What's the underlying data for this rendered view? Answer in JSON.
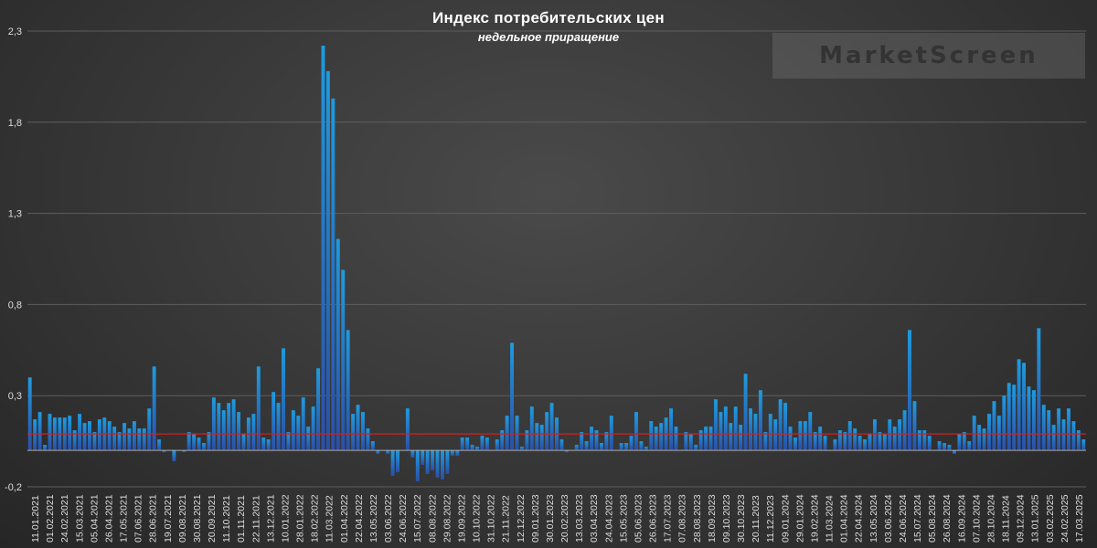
{
  "chart_data": {
    "type": "bar",
    "title": "Индекс потребительских цен",
    "subtitle": "недельное приращение",
    "ylim": [
      -0.2,
      2.3
    ],
    "yticks": [
      -0.2,
      0.3,
      0.8,
      1.3,
      1.8,
      2.3
    ],
    "ytick_labels": [
      "-0,2",
      "0,3",
      "0,8",
      "1,3",
      "1,8",
      "2,3"
    ],
    "xtick_labels": [
      "11.01.2021",
      "01.02.2021",
      "24.02.2021",
      "15.03.2021",
      "05.04.2021",
      "26.04.2021",
      "17.05.2021",
      "07.06.2021",
      "28.06.2021",
      "19.07.2021",
      "09.08.2021",
      "30.08.2021",
      "20.09.2021",
      "11.10.2021",
      "01.11.2021",
      "22.11.2021",
      "13.12.2021",
      "10.01.2022",
      "28.01.2022",
      "18.02.2022",
      "11.03.2022",
      "01.04.2022",
      "22.04.2022",
      "13.05.2022",
      "03.06.2022",
      "24.06.2022",
      "15.07.2022",
      "08.08.2022",
      "29.08.2022",
      "19.09.2022",
      "10.10.2022",
      "31.10.2022",
      "21.11.2022",
      "12.12.2022",
      "09.01.2023",
      "30.01.2023",
      "20.02.2023",
      "13.03.2023",
      "03.04.2023",
      "24.04.2023",
      "15.05.2023",
      "05.06.2023",
      "26.06.2023",
      "17.07.2023",
      "07.08.2023",
      "28.08.2023",
      "18.09.2023",
      "09.10.2023",
      "30.10.2023",
      "20.11.2023",
      "11.12.2023",
      "09.01.2024",
      "29.01.2024",
      "19.02.2024",
      "11.03.2024",
      "01.04.2024",
      "22.04.2024",
      "13.05.2024",
      "03.06.2024",
      "24.06.2024",
      "15.07.2024",
      "05.08.2024",
      "26.08.2024",
      "16.09.2024",
      "07.10.2024",
      "28.10.2024",
      "18.11.2024",
      "09.12.2024",
      "13.01.2025",
      "03.02.2025",
      "24.02.2025",
      "17.03.2025"
    ],
    "values": [
      0.4,
      0.17,
      0.21,
      0.03,
      0.2,
      0.18,
      0.18,
      0.18,
      0.19,
      0.11,
      0.2,
      0.15,
      0.16,
      0.1,
      0.17,
      0.18,
      0.16,
      0.13,
      0.1,
      0.15,
      0.12,
      0.16,
      0.12,
      0.12,
      0.23,
      0.46,
      0.06,
      -0.01,
      0.0,
      -0.06,
      0.0,
      -0.01,
      0.1,
      0.09,
      0.07,
      0.04,
      0.1,
      0.29,
      0.26,
      0.22,
      0.26,
      0.28,
      0.21,
      0.09,
      0.18,
      0.2,
      0.46,
      0.07,
      0.06,
      0.32,
      0.26,
      0.56,
      0.1,
      0.22,
      0.19,
      0.29,
      0.13,
      0.24,
      0.45,
      2.22,
      2.08,
      1.93,
      1.16,
      0.99,
      0.66,
      0.2,
      0.25,
      0.21,
      0.12,
      0.05,
      -0.02,
      0.0,
      -0.02,
      -0.14,
      -0.12,
      0.0,
      0.23,
      -0.04,
      -0.17,
      -0.08,
      -0.13,
      -0.11,
      -0.15,
      -0.16,
      -0.13,
      -0.03,
      -0.03,
      0.07,
      0.07,
      0.03,
      0.02,
      0.08,
      0.07,
      0.0,
      0.06,
      0.11,
      0.19,
      0.59,
      0.19,
      0.02,
      0.11,
      0.24,
      0.15,
      0.14,
      0.21,
      0.26,
      0.18,
      0.06,
      -0.01,
      0.0,
      0.03,
      0.1,
      0.05,
      0.13,
      0.11,
      0.04,
      0.1,
      0.19,
      0.0,
      0.04,
      0.04,
      0.08,
      0.21,
      0.05,
      0.02,
      0.16,
      0.13,
      0.15,
      0.18,
      0.23,
      0.13,
      0.0,
      0.1,
      0.09,
      0.03,
      0.11,
      0.13,
      0.13,
      0.28,
      0.21,
      0.24,
      0.15,
      0.24,
      0.14,
      0.42,
      0.23,
      0.2,
      0.33,
      0.1,
      0.2,
      0.17,
      0.28,
      0.26,
      0.13,
      0.07,
      0.16,
      0.16,
      0.21,
      0.1,
      0.13,
      0.08,
      0.0,
      0.06,
      0.11,
      0.1,
      0.16,
      0.12,
      0.08,
      0.06,
      0.09,
      0.17,
      0.1,
      0.09,
      0.17,
      0.13,
      0.17,
      0.22,
      0.66,
      0.27,
      0.11,
      0.11,
      0.08,
      0.0,
      0.05,
      0.04,
      0.03,
      -0.02,
      0.09,
      0.1,
      0.05,
      0.19,
      0.14,
      0.12,
      0.2,
      0.27,
      0.19,
      0.3,
      0.37,
      0.36,
      0.5,
      0.48,
      0.35,
      0.33,
      0.67,
      0.25,
      0.22,
      0.14,
      0.23,
      0.17,
      0.23,
      0.16,
      0.11,
      0.06
    ],
    "reference_line": 0.09,
    "reference_line_color": "#cc2222",
    "bar_color_top": "#1e9be0",
    "bar_color_bottom": "#2a4fa8",
    "grid": true
  },
  "watermark": "MarketScreen"
}
